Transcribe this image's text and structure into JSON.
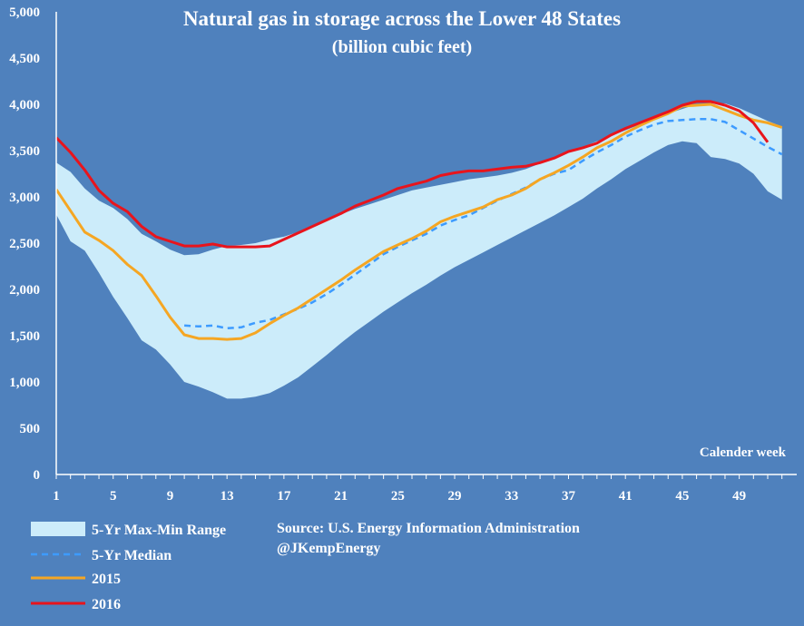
{
  "chart_data": {
    "type": "line",
    "title": "Natural gas in storage across the Lower 48 States",
    "subtitle": "(billion cubic feet)",
    "xlabel": "Calender week",
    "ylabel": "",
    "xlim": [
      1,
      52
    ],
    "ylim": [
      0,
      5000
    ],
    "y_ticks": [
      0,
      500,
      1000,
      1500,
      2000,
      2500,
      3000,
      3500,
      4000,
      4500,
      5000
    ],
    "y_tick_labels": [
      "0",
      "500",
      "1,000",
      "1,500",
      "2,000",
      "2,500",
      "3,000",
      "3,500",
      "4,000",
      "4,500",
      "5,000"
    ],
    "x_ticks": [
      1,
      5,
      9,
      13,
      17,
      21,
      25,
      29,
      33,
      37,
      41,
      45,
      49
    ],
    "x_tick_labels": [
      "1",
      "5",
      "9",
      "13",
      "17",
      "21",
      "25",
      "29",
      "33",
      "37",
      "41",
      "45",
      "49"
    ],
    "weeks": [
      1,
      2,
      3,
      4,
      5,
      6,
      7,
      8,
      9,
      10,
      11,
      12,
      13,
      14,
      15,
      16,
      17,
      18,
      19,
      20,
      21,
      22,
      23,
      24,
      25,
      26,
      27,
      28,
      29,
      30,
      31,
      32,
      33,
      34,
      35,
      36,
      37,
      38,
      39,
      40,
      41,
      42,
      43,
      44,
      45,
      46,
      47,
      48,
      49,
      50,
      51,
      52
    ],
    "range": {
      "name": "5-Yr Max-Min Range",
      "color": "#ccecfa",
      "max": [
        3370,
        3270,
        3090,
        2960,
        2880,
        2760,
        2600,
        2520,
        2430,
        2370,
        2380,
        2430,
        2470,
        2480,
        2500,
        2540,
        2570,
        2620,
        2680,
        2750,
        2810,
        2870,
        2920,
        2970,
        3020,
        3070,
        3100,
        3130,
        3160,
        3190,
        3210,
        3230,
        3260,
        3300,
        3360,
        3420,
        3480,
        3540,
        3600,
        3660,
        3720,
        3780,
        3840,
        3900,
        3950,
        4000,
        4010,
        4010,
        3960,
        3890,
        3820,
        3760
      ],
      "min": [
        2810,
        2520,
        2420,
        2180,
        1920,
        1690,
        1450,
        1350,
        1190,
        1000,
        950,
        890,
        820,
        820,
        840,
        880,
        960,
        1050,
        1170,
        1290,
        1420,
        1540,
        1650,
        1760,
        1860,
        1960,
        2050,
        2150,
        2240,
        2320,
        2400,
        2480,
        2560,
        2640,
        2720,
        2800,
        2890,
        2980,
        3090,
        3190,
        3300,
        3390,
        3480,
        3560,
        3600,
        3580,
        3430,
        3410,
        3360,
        3250,
        3060,
        2970
      ]
    },
    "series": [
      {
        "name": "5-Yr Median",
        "color": "#3d9bff",
        "dashed": true,
        "values": [
          null,
          null,
          null,
          null,
          null,
          null,
          null,
          null,
          null,
          1610,
          1600,
          1610,
          1580,
          1590,
          1640,
          1670,
          1730,
          1790,
          1860,
          1950,
          2050,
          2160,
          2270,
          2380,
          2460,
          2530,
          2600,
          2690,
          2750,
          2800,
          2880,
          2960,
          3030,
          3100,
          3190,
          3250,
          3290,
          3390,
          3480,
          3560,
          3650,
          3720,
          3780,
          3820,
          3830,
          3840,
          3840,
          3810,
          3720,
          3630,
          3540,
          3460
        ]
      },
      {
        "name": "2015",
        "color": "#f5a623",
        "dashed": false,
        "values": [
          3080,
          2850,
          2620,
          2530,
          2420,
          2270,
          2150,
          1930,
          1700,
          1510,
          1470,
          1470,
          1460,
          1470,
          1530,
          1630,
          1720,
          1800,
          1900,
          2000,
          2100,
          2210,
          2310,
          2410,
          2480,
          2550,
          2630,
          2730,
          2790,
          2840,
          2890,
          2970,
          3020,
          3090,
          3190,
          3260,
          3340,
          3430,
          3530,
          3600,
          3690,
          3770,
          3840,
          3900,
          3980,
          3990,
          4000,
          3940,
          3880,
          3830,
          3800,
          3750
        ]
      },
      {
        "name": "2016",
        "color": "#e8141c",
        "dashed": false,
        "values": [
          3640,
          3480,
          3290,
          3070,
          2930,
          2840,
          2680,
          2570,
          2520,
          2470,
          2470,
          2490,
          2460,
          2460,
          2460,
          2470,
          2540,
          2610,
          2680,
          2750,
          2820,
          2900,
          2960,
          3020,
          3090,
          3130,
          3170,
          3230,
          3260,
          3280,
          3280,
          3300,
          3320,
          3330,
          3370,
          3420,
          3490,
          3530,
          3580,
          3670,
          3740,
          3800,
          3860,
          3920,
          3990,
          4030,
          4030,
          3990,
          3930,
          3800,
          3590,
          null
        ]
      }
    ],
    "annotations": {
      "source": "Source: U.S. Energy Information Administration",
      "handle": "@JKempEnergy"
    },
    "legend_position": "bottom-left"
  }
}
